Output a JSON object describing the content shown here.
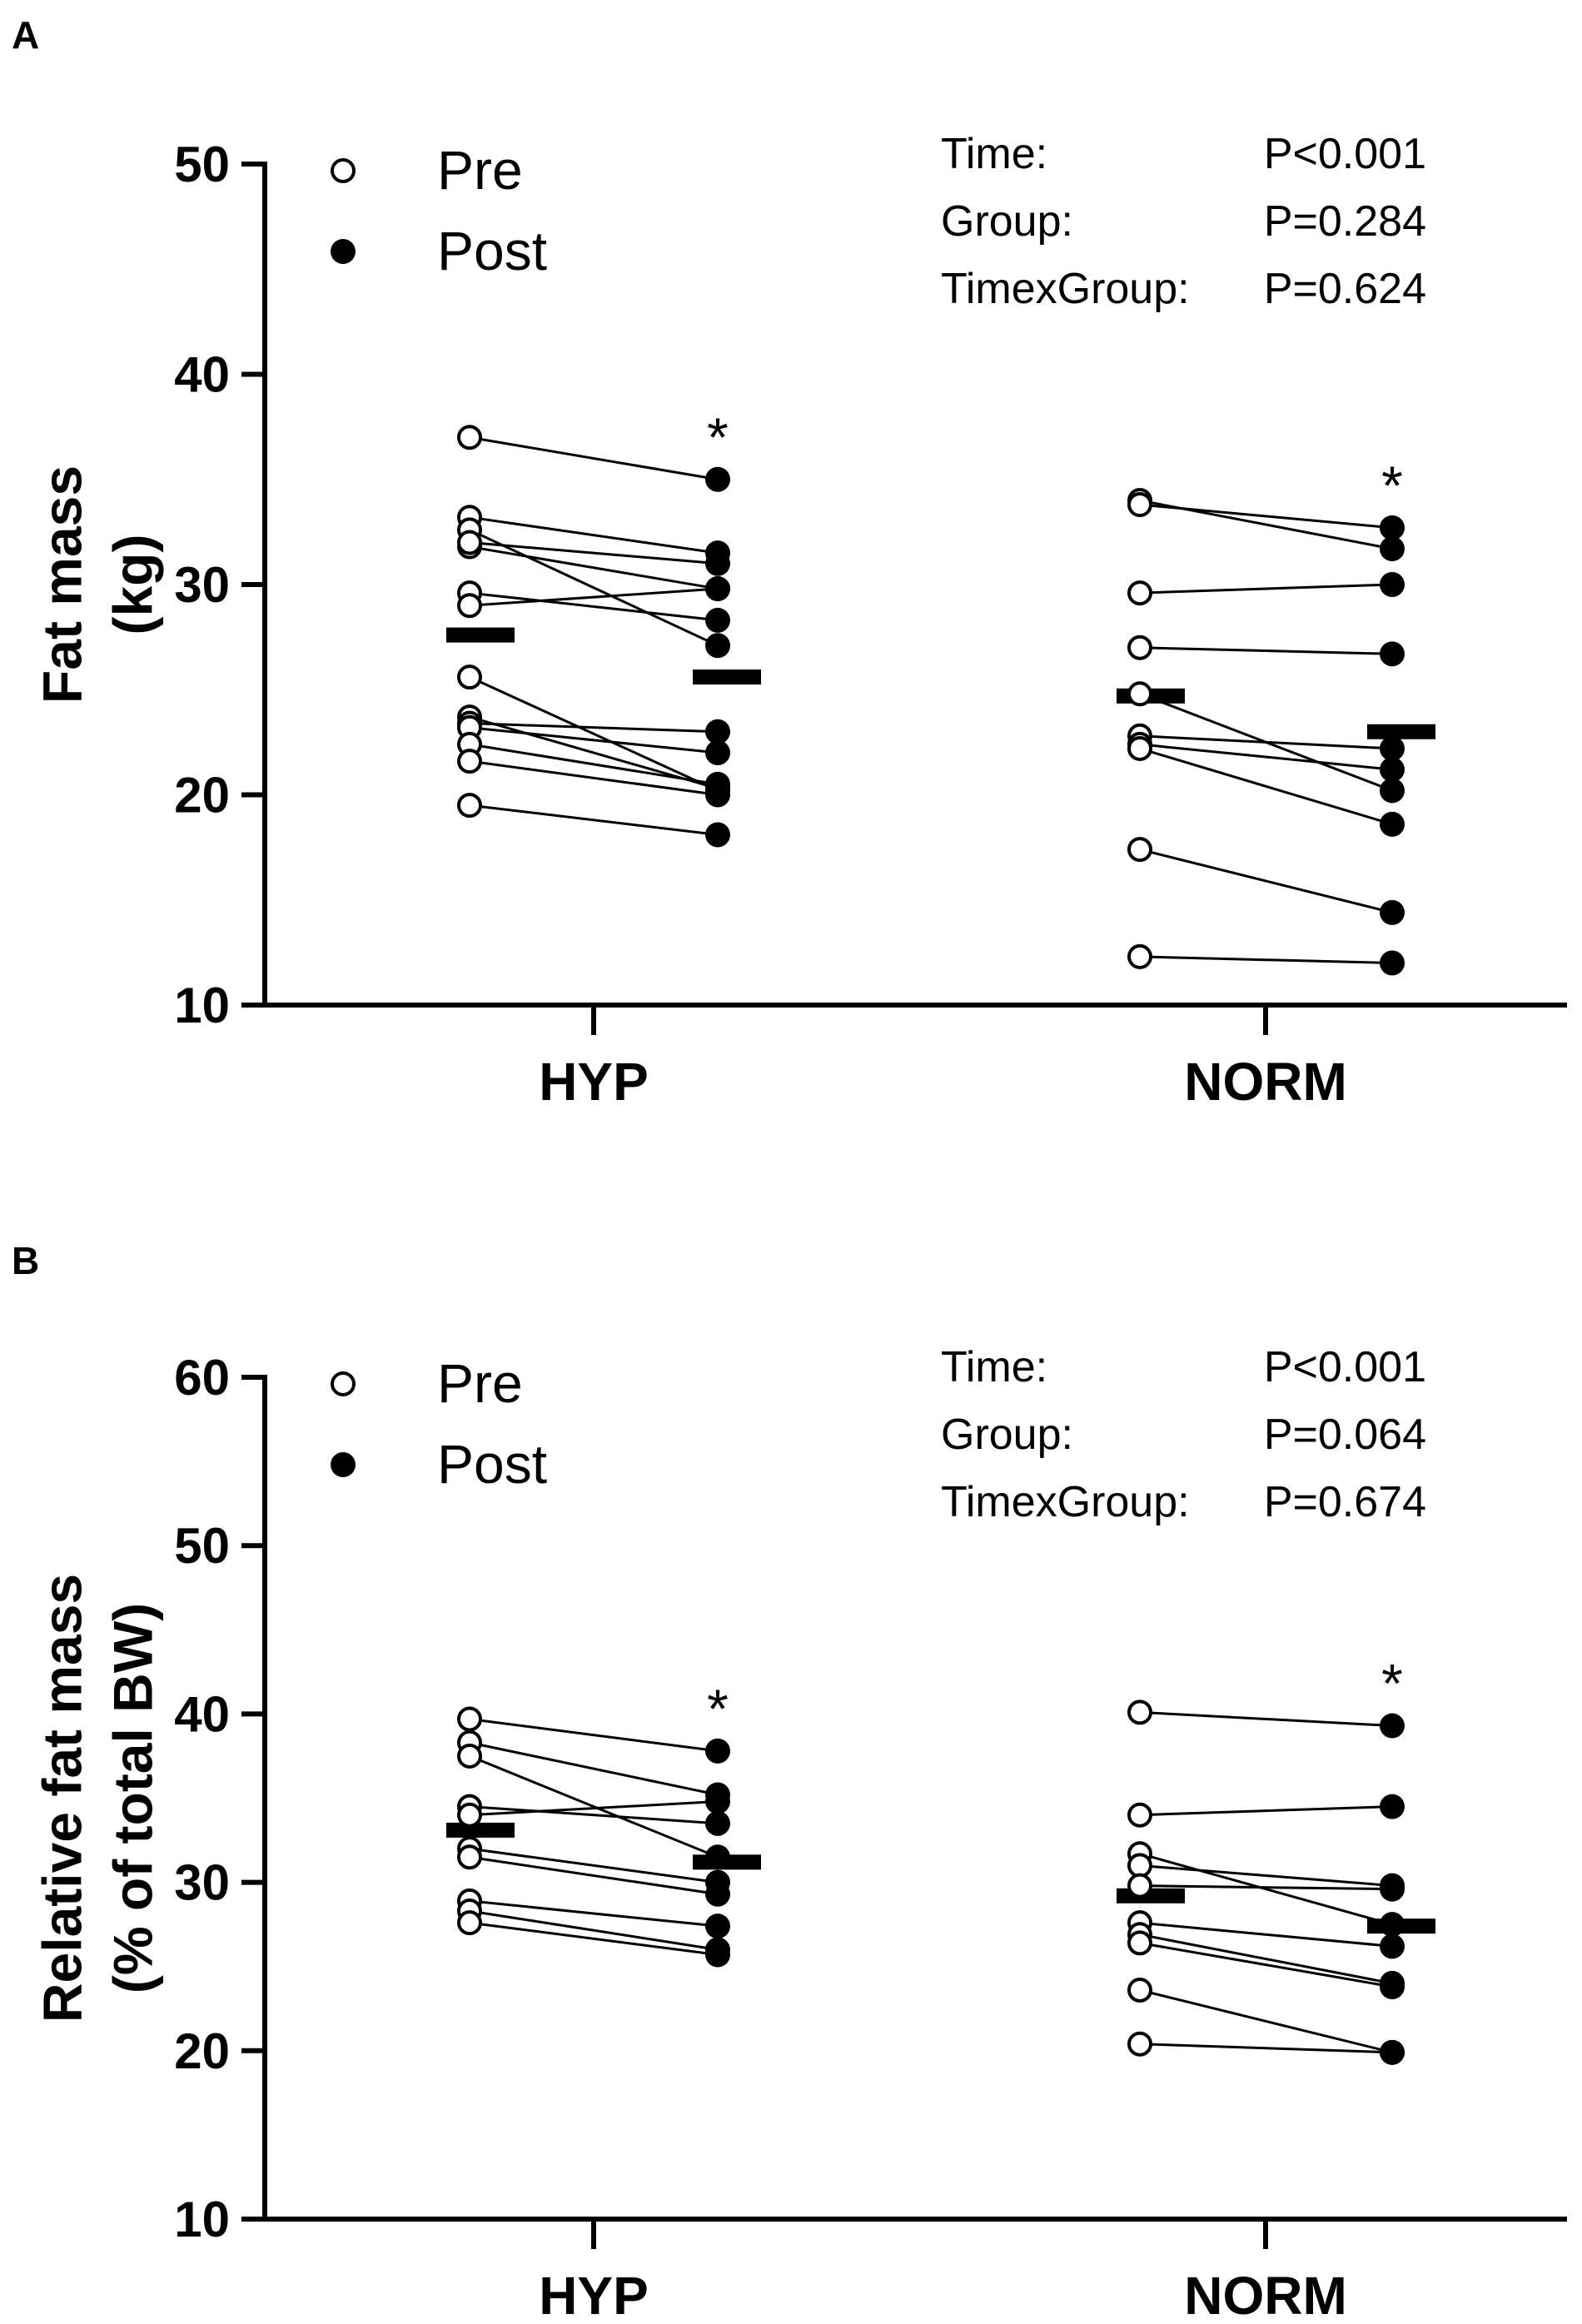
{
  "chart_data": [
    {
      "panel_label": "A",
      "type": "scatter",
      "subtype": "paired-dot plot",
      "ylabel_line1": "Fat mass",
      "ylabel_line2": "(kg)",
      "ylim": [
        10,
        50
      ],
      "yticks": [
        "10",
        "20",
        "30",
        "40",
        "50"
      ],
      "categories": [
        "HYP",
        "NORM"
      ],
      "legend": [
        {
          "name": "Pre",
          "marker": "open-circle"
        },
        {
          "name": "Post",
          "marker": "filled-circle"
        }
      ],
      "stats": [
        {
          "label": "Time:",
          "value": "P<0.001"
        },
        {
          "label": "Group:",
          "value": "P=0.284"
        },
        {
          "label": "TimexGroup:",
          "value": "P=0.624"
        }
      ],
      "significance_marker": "*",
      "groups": [
        {
          "name": "HYP",
          "pre": [
            37.0,
            33.2,
            32.6,
            31.8,
            32.0,
            29.6,
            29.0,
            25.6,
            23.7,
            23.4,
            23.2,
            22.4,
            21.6,
            19.5
          ],
          "post": [
            35.0,
            31.5,
            27.1,
            29.8,
            31.0,
            28.3,
            29.8,
            20.2,
            20.3,
            23.0,
            22.0,
            20.5,
            20.0,
            18.1
          ],
          "mean_pre": 27.6,
          "mean_post": 25.6
        },
        {
          "name": "NORM",
          "pre": [
            34.0,
            33.8,
            29.6,
            27.0,
            24.8,
            22.8,
            22.4,
            22.2,
            17.4,
            12.3
          ],
          "post": [
            31.7,
            32.7,
            30.0,
            26.7,
            20.2,
            22.2,
            21.2,
            18.6,
            14.4,
            12.0
          ],
          "mean_pre": 24.7,
          "mean_post": 23.0
        }
      ]
    },
    {
      "panel_label": "B",
      "type": "scatter",
      "subtype": "paired-dot plot",
      "ylabel_line1": "Relative fat mass",
      "ylabel_line2": "(% of total BW)",
      "ylim": [
        10,
        60
      ],
      "yticks": [
        "10",
        "20",
        "30",
        "40",
        "50",
        "60"
      ],
      "categories": [
        "HYP",
        "NORM"
      ],
      "legend": [
        {
          "name": "Pre",
          "marker": "open-circle"
        },
        {
          "name": "Post",
          "marker": "filled-circle"
        }
      ],
      "stats": [
        {
          "label": "Time:",
          "value": "P<0.001"
        },
        {
          "label": "Group:",
          "value": "P=0.064"
        },
        {
          "label": "TimexGroup:",
          "value": "P=0.674"
        }
      ],
      "significance_marker": "*",
      "groups": [
        {
          "name": "HYP",
          "pre": [
            39.7,
            38.3,
            37.5,
            34.5,
            34.0,
            32.0,
            31.5,
            28.9,
            28.3,
            27.6
          ],
          "post": [
            37.8,
            35.2,
            31.5,
            33.5,
            34.8,
            30.0,
            29.3,
            27.4,
            26.0,
            25.7
          ],
          "mean_pre": 33.1,
          "mean_post": 31.2
        },
        {
          "name": "NORM",
          "pre": [
            40.1,
            34.0,
            31.7,
            31.0,
            29.8,
            27.6,
            26.9,
            26.4,
            23.6,
            20.4
          ],
          "post": [
            39.3,
            34.5,
            27.5,
            29.8,
            29.6,
            26.2,
            24.0,
            23.8,
            19.9,
            19.9
          ],
          "mean_pre": 29.2,
          "mean_post": 27.4
        }
      ]
    }
  ]
}
